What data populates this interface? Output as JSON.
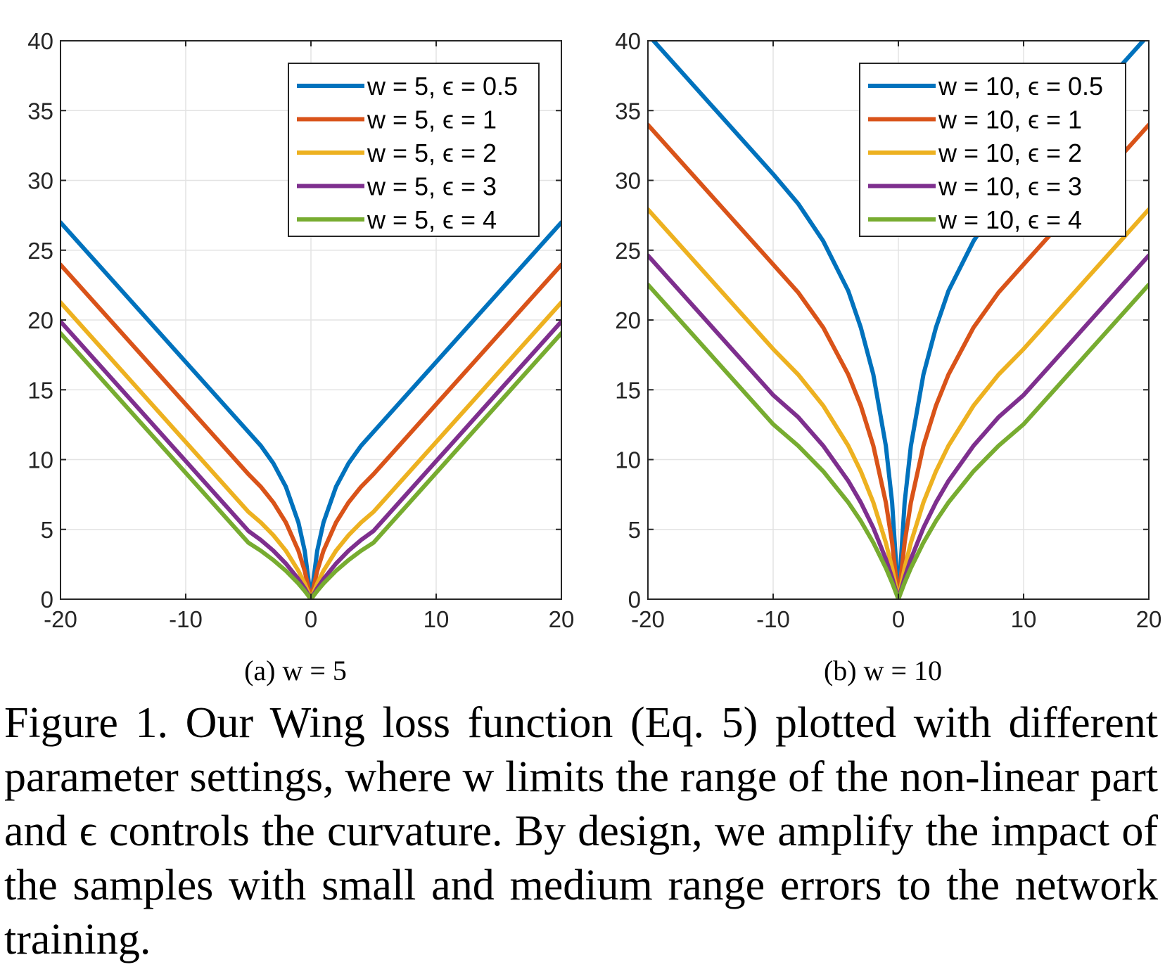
{
  "chart_data": [
    {
      "type": "line",
      "panel": "a",
      "subcaption": "(a) w = 5",
      "w": 5,
      "xlim": [
        -20,
        20
      ],
      "ylim": [
        0,
        40
      ],
      "xticks": [
        -20,
        -10,
        0,
        10,
        20
      ],
      "yticks": [
        0,
        5,
        10,
        15,
        20,
        25,
        30,
        35,
        40
      ],
      "grid": true,
      "legend_position": "top-right",
      "x": [
        -20,
        -15,
        -10,
        -5,
        -4,
        -3,
        -2,
        -1,
        -0.5,
        0,
        0.5,
        1,
        2,
        3,
        4,
        5,
        10,
        15,
        20
      ],
      "series": [
        {
          "name": "w = 5, ϵ = 0.5",
          "color": "#0072BD",
          "values": [
            26.99,
            21.99,
            16.99,
            11.99,
            10.99,
            9.73,
            8.05,
            5.49,
            3.47,
            0,
            3.47,
            5.49,
            8.05,
            9.73,
            10.99,
            11.99,
            16.99,
            21.99,
            26.99
          ]
        },
        {
          "name": "w = 5, ϵ = 1",
          "color": "#D95319",
          "values": [
            23.96,
            18.96,
            13.96,
            8.96,
            8.05,
            6.93,
            5.49,
            3.47,
            2.03,
            0,
            2.03,
            3.47,
            5.49,
            6.93,
            8.05,
            8.96,
            13.96,
            18.96,
            23.96
          ]
        },
        {
          "name": "w = 5, ϵ = 2",
          "color": "#EDB120",
          "values": [
            21.26,
            16.26,
            11.26,
            6.26,
            5.49,
            4.58,
            3.47,
            2.03,
            1.12,
            0,
            1.12,
            2.03,
            3.47,
            4.58,
            5.49,
            6.26,
            11.26,
            16.26,
            21.26
          ]
        },
        {
          "name": "w = 5, ϵ = 3",
          "color": "#7E2F8E",
          "values": [
            19.89,
            14.89,
            9.89,
            4.89,
            4.24,
            3.47,
            2.55,
            1.44,
            0.78,
            0,
            0.78,
            1.44,
            2.55,
            3.47,
            4.24,
            4.89,
            9.89,
            14.89,
            19.89
          ]
        },
        {
          "name": "w = 5, ϵ = 4",
          "color": "#77AC30",
          "values": [
            19.05,
            14.05,
            9.05,
            4.05,
            3.47,
            2.8,
            2.03,
            1.12,
            0.59,
            0,
            0.59,
            1.12,
            2.03,
            2.8,
            3.47,
            4.05,
            9.05,
            14.05,
            19.05
          ]
        }
      ]
    },
    {
      "type": "line",
      "panel": "b",
      "subcaption": "(b) w = 10",
      "w": 10,
      "xlim": [
        -20,
        20
      ],
      "ylim": [
        0,
        40
      ],
      "xticks": [
        -20,
        -10,
        0,
        10,
        20
      ],
      "yticks": [
        0,
        5,
        10,
        15,
        20,
        25,
        30,
        35,
        40
      ],
      "grid": true,
      "legend_position": "top-right",
      "x": [
        -20,
        -15,
        -10,
        -8,
        -6,
        -4,
        -3,
        -2,
        -1,
        -0.5,
        0,
        0.5,
        1,
        2,
        3,
        4,
        6,
        8,
        10,
        15,
        20
      ],
      "series": [
        {
          "name": "w = 10, ϵ = 0.5",
          "color": "#0072BD",
          "values": [
            40.45,
            35.45,
            30.45,
            28.33,
            25.65,
            22.08,
            19.46,
            16.09,
            10.99,
            6.93,
            0,
            6.93,
            10.99,
            16.09,
            19.46,
            22.08,
            25.65,
            28.33,
            30.45,
            35.45,
            40.45
          ]
        },
        {
          "name": "w = 10, ϵ = 1",
          "color": "#D95319",
          "values": [
            33.98,
            28.98,
            23.98,
            21.97,
            19.46,
            16.09,
            13.86,
            10.99,
            6.93,
            4.05,
            0,
            4.05,
            6.93,
            10.99,
            13.86,
            16.09,
            19.46,
            21.97,
            23.98,
            28.98,
            33.98
          ]
        },
        {
          "name": "w = 10, ϵ = 2",
          "color": "#EDB120",
          "values": [
            27.92,
            22.92,
            17.92,
            16.09,
            13.86,
            10.99,
            9.16,
            6.93,
            4.05,
            2.23,
            0,
            2.23,
            4.05,
            6.93,
            9.16,
            10.99,
            13.86,
            16.09,
            17.92,
            22.92,
            27.92
          ]
        },
        {
          "name": "w = 10, ϵ = 3",
          "color": "#7E2F8E",
          "values": [
            24.62,
            19.62,
            14.62,
            13.04,
            10.99,
            8.47,
            6.93,
            5.11,
            2.88,
            1.54,
            0,
            1.54,
            2.88,
            5.11,
            6.93,
            8.47,
            10.99,
            13.04,
            14.62,
            19.62,
            24.62
          ]
        },
        {
          "name": "w = 10, ϵ = 4",
          "color": "#77AC30",
          "values": [
            22.53,
            17.53,
            12.53,
            10.99,
            9.16,
            6.93,
            5.6,
            4.05,
            2.23,
            1.18,
            0,
            1.18,
            2.23,
            4.05,
            5.6,
            6.93,
            9.16,
            10.99,
            12.53,
            17.53,
            22.53
          ]
        }
      ]
    }
  ],
  "caption": {
    "lines": [
      "Figure 1. Our Wing loss function (Eq. 5) plotted with different",
      "parameter settings, where w limits the range of the non-linear part",
      "and ϵ controls the curvature. By design, we amplify the impact of",
      "the samples with small and medium range errors to the network",
      "training."
    ]
  }
}
